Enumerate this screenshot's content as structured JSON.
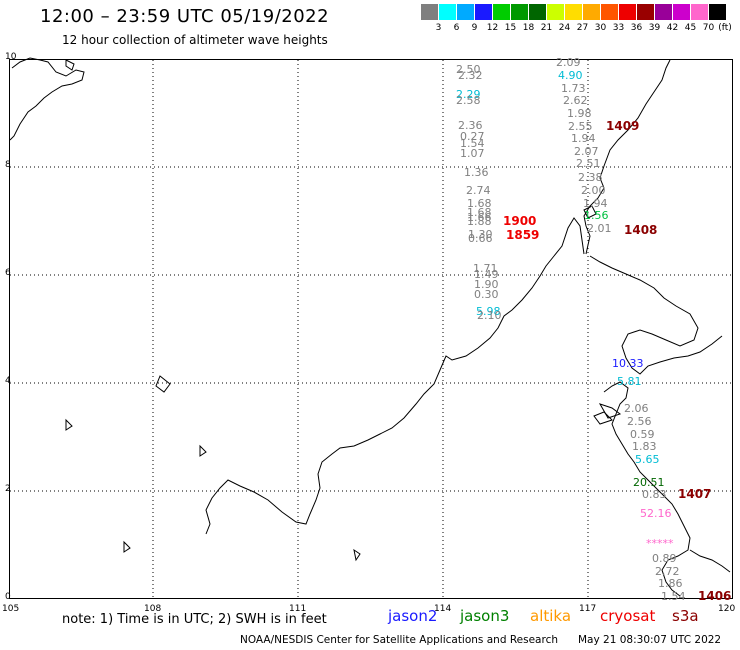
{
  "header": {
    "title": "12:00 – 23:59 UTC 05/19/2022",
    "subtitle": "12 hour collection of altimeter wave heights"
  },
  "scale": {
    "unit": "(ft)",
    "bins": [
      {
        "label": "3",
        "color": "#7f7f7f"
      },
      {
        "label": "6",
        "color": "#00ffff"
      },
      {
        "label": "9",
        "color": "#00aaff"
      },
      {
        "label": "12",
        "color": "#1a1aff"
      },
      {
        "label": "15",
        "color": "#00cc00"
      },
      {
        "label": "18",
        "color": "#009900"
      },
      {
        "label": "21",
        "color": "#006600"
      },
      {
        "label": "24",
        "color": "#ccff00"
      },
      {
        "label": "27",
        "color": "#ffdd00"
      },
      {
        "label": "30",
        "color": "#ffaa00"
      },
      {
        "label": "33",
        "color": "#ff5500"
      },
      {
        "label": "36",
        "color": "#ee0000"
      },
      {
        "label": "39",
        "color": "#990000"
      },
      {
        "label": "42",
        "color": "#990099"
      },
      {
        "label": "45",
        "color": "#cc00cc"
      },
      {
        "label": "70",
        "color": "#ff66cc"
      },
      {
        "label": "",
        "color": "#000000"
      }
    ]
  },
  "axes": {
    "lon_ticks": [
      "105",
      "108",
      "111",
      "114",
      "117",
      "120"
    ],
    "lat_ticks": [
      "10",
      "8",
      "6",
      "4",
      "2",
      "0"
    ]
  },
  "observations": [
    {
      "text": "2.50",
      "color": "#808080"
    },
    {
      "text": "2.32",
      "color": "#808080"
    },
    {
      "text": "2.29",
      "color": "#00bcd4"
    },
    {
      "text": "2.58",
      "color": "#808080"
    },
    {
      "text": "2.36",
      "color": "#808080"
    },
    {
      "text": "0.27",
      "color": "#808080"
    },
    {
      "text": "1.54",
      "color": "#808080"
    },
    {
      "text": "1.07",
      "color": "#808080"
    },
    {
      "text": "1.36",
      "color": "#808080"
    },
    {
      "text": "2.74",
      "color": "#808080"
    },
    {
      "text": "1.68",
      "color": "#808080"
    },
    {
      "text": "1.68",
      "color": "#808080"
    },
    {
      "text": "1.66",
      "color": "#808080"
    },
    {
      "text": "1.88",
      "color": "#808080"
    },
    {
      "text": "1.30",
      "color": "#808080"
    },
    {
      "text": "0.66",
      "color": "#808080"
    },
    {
      "text": "1.71",
      "color": "#808080"
    },
    {
      "text": "1.49",
      "color": "#808080"
    },
    {
      "text": "1.90",
      "color": "#808080"
    },
    {
      "text": "0.30",
      "color": "#808080"
    },
    {
      "text": "5.98",
      "color": "#00bcd4"
    },
    {
      "text": "2.10",
      "color": "#808080"
    },
    {
      "text": "2.09",
      "color": "#808080"
    },
    {
      "text": "4.90",
      "color": "#00bcd4"
    },
    {
      "text": "1.73",
      "color": "#808080"
    },
    {
      "text": "2.62",
      "color": "#808080"
    },
    {
      "text": "1.98",
      "color": "#808080"
    },
    {
      "text": "2.55",
      "color": "#808080"
    },
    {
      "text": "1.94",
      "color": "#808080"
    },
    {
      "text": "2.07",
      "color": "#808080"
    },
    {
      "text": "2.51",
      "color": "#808080"
    },
    {
      "text": "2.38",
      "color": "#808080"
    },
    {
      "text": "2.00",
      "color": "#808080"
    },
    {
      "text": "1.94",
      "color": "#808080"
    },
    {
      "text": "1.56",
      "color": "#00c040"
    },
    {
      "text": "2.01",
      "color": "#808080"
    },
    {
      "text": "10.33",
      "color": "#1a1aff"
    },
    {
      "text": "5.81",
      "color": "#00bcd4"
    },
    {
      "text": "2.06",
      "color": "#808080"
    },
    {
      "text": "2.56",
      "color": "#808080"
    },
    {
      "text": "0.59",
      "color": "#808080"
    },
    {
      "text": "1.83",
      "color": "#808080"
    },
    {
      "text": "5.65",
      "color": "#00bcd4"
    },
    {
      "text": "20.51",
      "color": "#006600"
    },
    {
      "text": "0.83",
      "color": "#808080"
    },
    {
      "text": "52.16",
      "color": "#ff66cc"
    },
    {
      "text": "*****",
      "color": "#ff66cc"
    },
    {
      "text": "0.89",
      "color": "#808080"
    },
    {
      "text": "2.72",
      "color": "#808080"
    },
    {
      "text": "1.86",
      "color": "#808080"
    },
    {
      "text": "1.54",
      "color": "#808080"
    }
  ],
  "passes": [
    {
      "text": "1900",
      "color": "#ee0000"
    },
    {
      "text": "1859",
      "color": "#ee0000"
    },
    {
      "text": "1409",
      "color": "#8b0000"
    },
    {
      "text": "1408",
      "color": "#8b0000"
    },
    {
      "text": "1407",
      "color": "#8b0000"
    },
    {
      "text": "1406",
      "color": "#8b0000"
    }
  ],
  "legend": {
    "note": "note:  1) Time is in UTC;  2) SWH is in feet",
    "satellites": [
      {
        "name": "jason2",
        "color": "#1a1aff"
      },
      {
        "name": "jason3",
        "color": "#008000"
      },
      {
        "name": "altika",
        "color": "#ff9900"
      },
      {
        "name": "cryosat",
        "color": "#ee0000"
      },
      {
        "name": "s3a",
        "color": "#8b0000"
      }
    ]
  },
  "footer": {
    "credit": "NOAA/NESDIS Center for Satellite Applications and Research",
    "timestamp": "May 21 08:30:07 UTC 2022"
  }
}
